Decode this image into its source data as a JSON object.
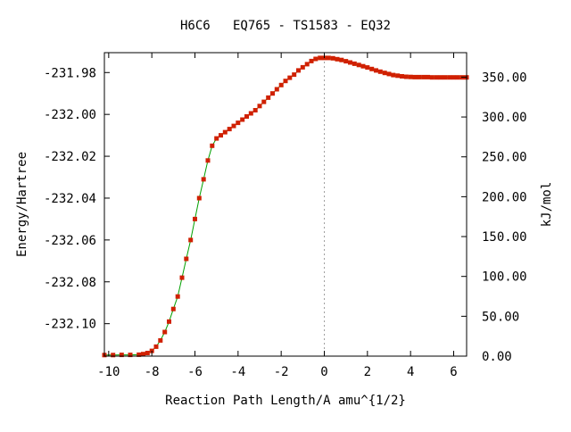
{
  "chart_data": {
    "type": "line",
    "title": "H6C6   EQ765 - TS1583 - EQ32",
    "xlabel": "Reaction Path Length/A amu^{1/2}",
    "ylabel_left": "Energy/Hartree",
    "ylabel_right": "kJ/mol",
    "xlim": [
      -10.2,
      6.6
    ],
    "ylim_left": [
      -232.1155,
      -231.9705
    ],
    "ylim_right": [
      0,
      380.7
    ],
    "x_ticks": [
      -10,
      -8,
      -6,
      -4,
      -2,
      0,
      2,
      4,
      6
    ],
    "y_ticks_left": [
      -231.98,
      -232.0,
      -232.02,
      -232.04,
      -232.06,
      -232.08,
      -232.1
    ],
    "y_ticks_left_labels": [
      "-231.98",
      "-232.00",
      "-232.02",
      "-232.04",
      "-232.06",
      "-232.08",
      "-232.10"
    ],
    "y_ticks_right": [
      350,
      300,
      250,
      200,
      150,
      100,
      50,
      0
    ],
    "y_ticks_right_labels": [
      "350.00",
      "300.00",
      "250.00",
      "200.00",
      "150.00",
      "100.00",
      "50.00",
      "0.00"
    ],
    "ts_marker_x": 0,
    "grid": false,
    "line_color": "#00a000",
    "marker_color": "#d02000",
    "ts_line_color": "#a0a0a0",
    "series": [
      {
        "x": [
          -10.2,
          -9.8,
          -9.4,
          -9.0,
          -8.6,
          -8.4,
          -8.2,
          -8.0,
          -7.8,
          -7.6,
          -7.4,
          -7.2,
          -7.0,
          -6.8,
          -6.6,
          -6.4,
          -6.2,
          -6.0,
          -5.8,
          -5.6,
          -5.4,
          -5.2,
          -5.0,
          -4.8,
          -4.6,
          -4.4,
          -4.2,
          -4.0,
          -3.8,
          -3.6,
          -3.4,
          -3.2,
          -3.0,
          -2.8,
          -2.6,
          -2.4,
          -2.2,
          -2.0,
          -1.8,
          -1.6,
          -1.4,
          -1.2,
          -1.0,
          -0.8,
          -0.6,
          -0.4,
          -0.2,
          0.0,
          0.2,
          0.4,
          0.6,
          0.8,
          1.0,
          1.2,
          1.4,
          1.6,
          1.8,
          2.0,
          2.2,
          2.4,
          2.6,
          2.8,
          3.0,
          3.2,
          3.4,
          3.6,
          3.8,
          4.0,
          4.2,
          4.4,
          4.6,
          4.8,
          5.0,
          5.2,
          5.4,
          5.6,
          5.8,
          6.0,
          6.2,
          6.4,
          6.6
        ],
        "y": [
          -232.115,
          -232.115,
          -232.1149,
          -232.1149,
          -232.1148,
          -232.1145,
          -232.114,
          -232.113,
          -232.111,
          -232.108,
          -232.104,
          -232.099,
          -232.093,
          -232.087,
          -232.078,
          -232.069,
          -232.06,
          -232.05,
          -232.04,
          -232.031,
          -232.022,
          -232.015,
          -232.0115,
          -232.01,
          -232.0085,
          -232.007,
          -232.0055,
          -232.004,
          -232.0025,
          -232.001,
          -231.9995,
          -231.998,
          -231.996,
          -231.994,
          -231.992,
          -231.99,
          -231.988,
          -231.986,
          -231.984,
          -231.9825,
          -231.981,
          -231.979,
          -231.9775,
          -231.976,
          -231.9745,
          -231.9735,
          -231.973,
          -231.973,
          -231.973,
          -231.9732,
          -231.9736,
          -231.974,
          -231.9746,
          -231.9752,
          -231.9758,
          -231.9764,
          -231.977,
          -231.9776,
          -231.9783,
          -231.979,
          -231.9796,
          -231.9802,
          -231.9807,
          -231.9812,
          -231.9815,
          -231.9818,
          -231.982,
          -231.9821,
          -231.9822,
          -231.9822,
          -231.9822,
          -231.9822,
          -231.9823,
          -231.9823,
          -231.9823,
          -231.9823,
          -231.9823,
          -231.9823,
          -231.9823,
          -231.9823,
          -231.9823
        ]
      }
    ]
  }
}
